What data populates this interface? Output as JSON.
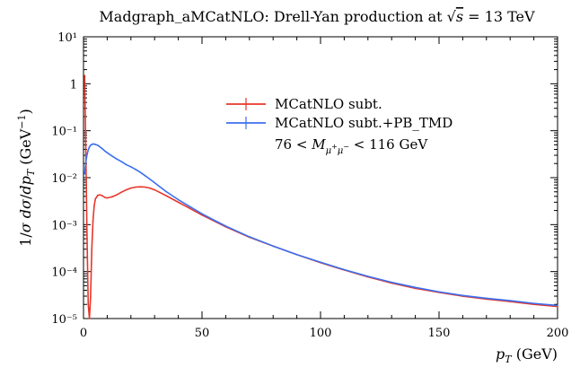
{
  "chart_data": {
    "type": "line",
    "title": "Madgraph_aMCatNLO: Drell-Yan production at √s = 13 TeV",
    "xlabel": "p_T (GeV)",
    "ylabel": "1/σ dσ/dp_T (GeV⁻¹)",
    "xlim": [
      0,
      200
    ],
    "ylim": [
      1e-05,
      10
    ],
    "yscale": "log",
    "x_ticks": [
      0,
      50,
      100,
      150,
      200
    ],
    "y_ticks": [
      "10⁻⁵",
      "10⁻⁴",
      "10⁻³",
      "10⁻²",
      "10⁻¹",
      "1",
      "10¹"
    ],
    "legend_position": "top-right",
    "legend_note": "76 < M_μ⁺μ⁻ < 116 GeV",
    "grid": false,
    "series": [
      {
        "name": "MCatNLO subt.",
        "color": "#e8372a",
        "x": [
          0.5,
          1,
          1.5,
          2,
          2.5,
          3,
          3.5,
          4,
          4.5,
          5,
          6,
          7,
          8,
          9,
          10,
          12,
          14,
          16,
          18,
          20,
          22,
          24,
          26,
          28,
          30,
          32,
          35,
          40,
          45,
          50,
          55,
          60,
          70,
          80,
          90,
          100,
          110,
          120,
          130,
          140,
          150,
          160,
          170,
          180,
          190,
          200
        ],
        "y": [
          1.5,
          0.03,
          0.0005,
          2e-05,
          1e-05,
          3e-05,
          0.0003,
          0.0012,
          0.0025,
          0.0035,
          0.0042,
          0.0043,
          0.0041,
          0.0038,
          0.0037,
          0.0039,
          0.0043,
          0.0049,
          0.0055,
          0.006,
          0.0063,
          0.0064,
          0.0063,
          0.006,
          0.0055,
          0.0049,
          0.0041,
          0.003,
          0.0022,
          0.0016,
          0.0012,
          0.0009,
          0.00054,
          0.00035,
          0.00023,
          0.000155,
          0.000108,
          7.7e-05,
          5.7e-05,
          4.4e-05,
          3.6e-05,
          3e-05,
          2.6e-05,
          2.3e-05,
          2e-05,
          1.8e-05
        ]
      },
      {
        "name": "MCatNLO subt.+PB_TMD",
        "color": "#3b6ff0",
        "x": [
          0.5,
          1,
          1.5,
          2,
          2.5,
          3,
          3.5,
          4,
          4.5,
          5,
          6,
          7,
          8,
          9,
          10,
          12,
          14,
          16,
          18,
          20,
          22,
          24,
          26,
          28,
          30,
          32,
          35,
          40,
          45,
          50,
          55,
          60,
          70,
          80,
          90,
          100,
          110,
          120,
          130,
          140,
          150,
          160,
          170,
          180,
          190,
          200
        ],
        "y": [
          0.012,
          0.022,
          0.031,
          0.039,
          0.045,
          0.049,
          0.051,
          0.052,
          0.052,
          0.051,
          0.049,
          0.045,
          0.041,
          0.037,
          0.034,
          0.029,
          0.025,
          0.022,
          0.019,
          0.017,
          0.015,
          0.013,
          0.011,
          0.0093,
          0.0078,
          0.0065,
          0.005,
          0.0034,
          0.0024,
          0.0017,
          0.00125,
          0.00093,
          0.00055,
          0.00035,
          0.00023,
          0.000158,
          0.00011,
          7.9e-05,
          5.9e-05,
          4.6e-05,
          3.7e-05,
          3.1e-05,
          2.7e-05,
          2.4e-05,
          2.1e-05,
          1.9e-05
        ]
      }
    ]
  }
}
